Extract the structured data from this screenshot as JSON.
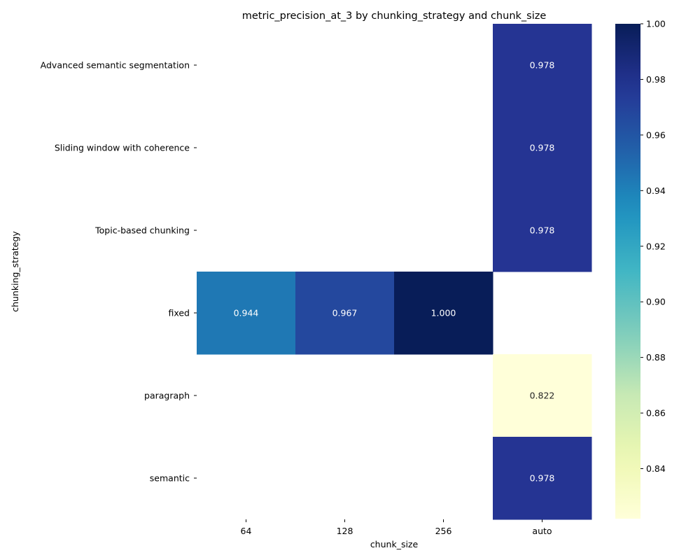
{
  "chart_data": {
    "type": "heatmap",
    "title": "metric_precision_at_3 by chunking_strategy and chunk_size",
    "xlabel": "chunk_size",
    "ylabel": "chunking_strategy",
    "x_categories": [
      "64",
      "128",
      "256",
      "auto"
    ],
    "y_categories": [
      "Advanced semantic segmentation",
      "Sliding window with coherence",
      "Topic-based chunking",
      "fixed",
      "paragraph",
      "semantic"
    ],
    "values": [
      [
        null,
        null,
        null,
        0.978
      ],
      [
        null,
        null,
        null,
        0.978
      ],
      [
        null,
        null,
        null,
        0.978
      ],
      [
        0.944,
        0.967,
        1.0,
        null
      ],
      [
        null,
        null,
        null,
        0.822
      ],
      [
        null,
        null,
        null,
        0.978
      ]
    ],
    "value_labels": [
      [
        null,
        null,
        null,
        "0.978"
      ],
      [
        null,
        null,
        null,
        "0.978"
      ],
      [
        null,
        null,
        null,
        "0.978"
      ],
      [
        "0.944",
        "0.967",
        "1.000",
        null
      ],
      [
        null,
        null,
        null,
        "0.822"
      ],
      [
        null,
        null,
        null,
        "0.978"
      ]
    ],
    "colorbar": {
      "vmin": 0.822,
      "vmax": 1.0,
      "ticks": [
        0.84,
        0.86,
        0.88,
        0.9,
        0.92,
        0.94,
        0.96,
        0.98,
        1.0
      ],
      "tick_labels": [
        "0.84",
        "0.86",
        "0.88",
        "0.90",
        "0.92",
        "0.94",
        "0.96",
        "0.98",
        "1.00"
      ],
      "colormap": "YlGnBu"
    },
    "grid": false,
    "legend": "colorbar-right"
  }
}
